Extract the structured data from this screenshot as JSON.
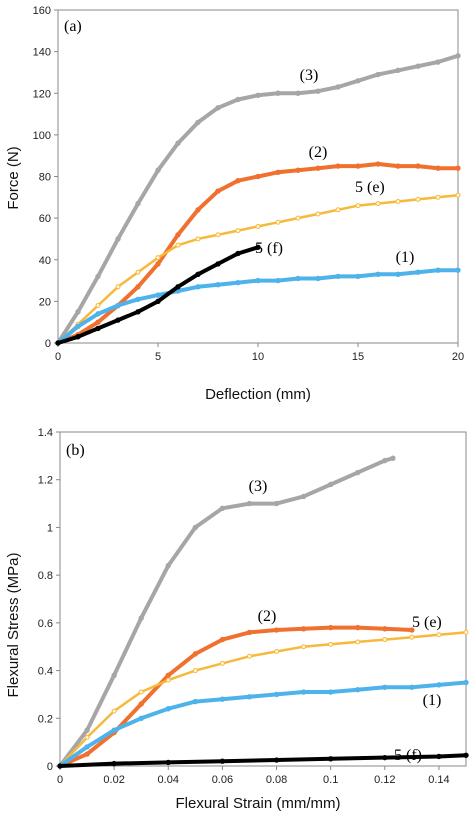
{
  "chart_data": [
    {
      "type": "line",
      "panel_label": "(a)",
      "xlabel": "Deflection (mm)",
      "ylabel": "Force (N)",
      "xlim": [
        0,
        20
      ],
      "ylim": [
        0,
        160
      ],
      "xticks": [
        0,
        5,
        10,
        15,
        20
      ],
      "yticks": [
        0,
        20,
        40,
        60,
        80,
        100,
        120,
        140,
        160
      ],
      "grid": false,
      "series": [
        {
          "name": "(3)",
          "color": "#a6a6a6",
          "x": [
            0,
            1,
            2,
            3,
            4,
            5,
            6,
            7,
            8,
            9,
            10,
            11,
            12,
            13,
            14,
            15,
            16,
            17,
            18,
            19,
            20
          ],
          "y": [
            0,
            15,
            32,
            50,
            67,
            83,
            96,
            106,
            113,
            117,
            119,
            120,
            120,
            121,
            123,
            126,
            129,
            131,
            133,
            135,
            138
          ]
        },
        {
          "name": "(2)",
          "color": "#f07030",
          "x": [
            0,
            1,
            2,
            3,
            4,
            5,
            6,
            7,
            8,
            9,
            10,
            11,
            12,
            13,
            14,
            15,
            16,
            17,
            18,
            19,
            20
          ],
          "y": [
            0,
            4,
            10,
            18,
            27,
            38,
            52,
            64,
            73,
            78,
            80,
            82,
            83,
            84,
            85,
            85,
            86,
            85,
            85,
            84,
            84
          ]
        },
        {
          "name": "5 (e)",
          "color": "#f6b93b",
          "x": [
            0,
            1,
            2,
            3,
            4,
            5,
            6,
            7,
            8,
            9,
            10,
            11,
            12,
            13,
            14,
            15,
            16,
            17,
            18,
            19,
            20
          ],
          "y": [
            0,
            9,
            18,
            27,
            34,
            41,
            47,
            50,
            52,
            54,
            56,
            58,
            60,
            62,
            64,
            66,
            67,
            68,
            69,
            70,
            71
          ]
        },
        {
          "name": "(1)",
          "color": "#4db3ea",
          "x": [
            0,
            1,
            2,
            3,
            4,
            5,
            6,
            7,
            8,
            9,
            10,
            11,
            12,
            13,
            14,
            15,
            16,
            17,
            18,
            19,
            20
          ],
          "y": [
            0,
            8,
            14,
            18,
            21,
            23,
            25,
            27,
            28,
            29,
            30,
            30,
            31,
            31,
            32,
            32,
            33,
            33,
            34,
            35,
            35
          ]
        },
        {
          "name": "5 (f)",
          "color": "#000000",
          "x": [
            0,
            1,
            2,
            3,
            4,
            5,
            6,
            7,
            8,
            9,
            10
          ],
          "y": [
            0,
            3,
            7,
            11,
            15,
            20,
            27,
            33,
            38,
            43,
            46
          ]
        }
      ]
    },
    {
      "type": "line",
      "panel_label": "(b)",
      "xlabel": "Flexural Strain (mm/mm)",
      "ylabel": "Flexural Stress (MPa)",
      "xlim": [
        0,
        0.15
      ],
      "ylim": [
        0,
        1.4
      ],
      "xticks": [
        0,
        0.02,
        0.04,
        0.06,
        0.08,
        0.1,
        0.12,
        0.14
      ],
      "yticks": [
        0,
        0.2,
        0.4,
        0.6,
        0.8,
        1,
        1.2,
        1.4
      ],
      "grid": false,
      "series": [
        {
          "name": "(3)",
          "color": "#a6a6a6",
          "x": [
            0,
            0.01,
            0.02,
            0.03,
            0.04,
            0.05,
            0.06,
            0.07,
            0.08,
            0.09,
            0.1,
            0.11,
            0.12,
            0.123
          ],
          "y": [
            0,
            0.15,
            0.38,
            0.62,
            0.84,
            1.0,
            1.08,
            1.1,
            1.1,
            1.13,
            1.18,
            1.23,
            1.28,
            1.29
          ]
        },
        {
          "name": "(2)",
          "color": "#f07030",
          "x": [
            0,
            0.01,
            0.02,
            0.03,
            0.04,
            0.05,
            0.06,
            0.07,
            0.08,
            0.09,
            0.1,
            0.11,
            0.12,
            0.13
          ],
          "y": [
            0,
            0.05,
            0.14,
            0.26,
            0.38,
            0.47,
            0.53,
            0.56,
            0.57,
            0.575,
            0.58,
            0.58,
            0.575,
            0.57
          ]
        },
        {
          "name": "5 (e)",
          "color": "#f6b93b",
          "x": [
            0,
            0.01,
            0.02,
            0.03,
            0.04,
            0.05,
            0.06,
            0.07,
            0.08,
            0.09,
            0.1,
            0.11,
            0.12,
            0.13,
            0.14,
            0.15
          ],
          "y": [
            0,
            0.12,
            0.23,
            0.31,
            0.36,
            0.4,
            0.43,
            0.46,
            0.48,
            0.5,
            0.51,
            0.52,
            0.53,
            0.54,
            0.55,
            0.56
          ]
        },
        {
          "name": "(1)",
          "color": "#4db3ea",
          "x": [
            0,
            0.01,
            0.02,
            0.03,
            0.04,
            0.05,
            0.06,
            0.07,
            0.08,
            0.09,
            0.1,
            0.11,
            0.12,
            0.13,
            0.14,
            0.15
          ],
          "y": [
            0,
            0.08,
            0.15,
            0.2,
            0.24,
            0.27,
            0.28,
            0.29,
            0.3,
            0.31,
            0.31,
            0.32,
            0.33,
            0.33,
            0.34,
            0.35
          ]
        },
        {
          "name": "5 (f)",
          "color": "#000000",
          "x": [
            0,
            0.02,
            0.04,
            0.06,
            0.08,
            0.1,
            0.12,
            0.14,
            0.15
          ],
          "y": [
            0,
            0.01,
            0.015,
            0.02,
            0.025,
            0.03,
            0.035,
            0.04,
            0.045
          ]
        }
      ]
    }
  ]
}
